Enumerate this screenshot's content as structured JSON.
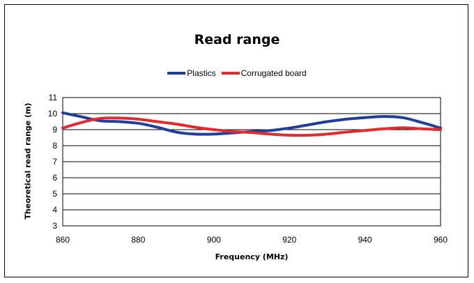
{
  "chart_data": {
    "type": "line",
    "title": "Read range",
    "xlabel": "Frequency (MHz)",
    "ylabel": "Theoretical read range (m)",
    "xlim": [
      860,
      960
    ],
    "ylim": [
      3,
      11
    ],
    "x_ticks": [
      860,
      880,
      900,
      920,
      940,
      960
    ],
    "y_ticks": [
      3,
      4,
      5,
      6,
      7,
      8,
      9,
      10,
      11
    ],
    "grid": "horizontal",
    "legend_position": "top",
    "series": [
      {
        "name": "Plastics",
        "color": "#1f3f9a",
        "x": [
          860,
          865,
          870,
          875,
          880,
          885,
          890,
          895,
          900,
          905,
          910,
          915,
          920,
          925,
          930,
          935,
          940,
          945,
          950,
          955,
          960
        ],
        "y": [
          10.05,
          9.8,
          9.55,
          9.5,
          9.4,
          9.15,
          8.85,
          8.72,
          8.72,
          8.8,
          8.88,
          8.95,
          9.1,
          9.3,
          9.5,
          9.65,
          9.75,
          9.82,
          9.75,
          9.45,
          9.1
        ]
      },
      {
        "name": "Corrugated board",
        "color": "#e32b2f",
        "x": [
          860,
          865,
          870,
          875,
          880,
          885,
          890,
          895,
          900,
          905,
          910,
          915,
          920,
          925,
          930,
          935,
          940,
          945,
          950,
          955,
          960
        ],
        "y": [
          9.1,
          9.45,
          9.7,
          9.72,
          9.65,
          9.5,
          9.35,
          9.15,
          9.0,
          8.88,
          8.82,
          8.72,
          8.65,
          8.65,
          8.72,
          8.85,
          8.95,
          9.05,
          9.12,
          9.05,
          9.0
        ]
      }
    ]
  }
}
